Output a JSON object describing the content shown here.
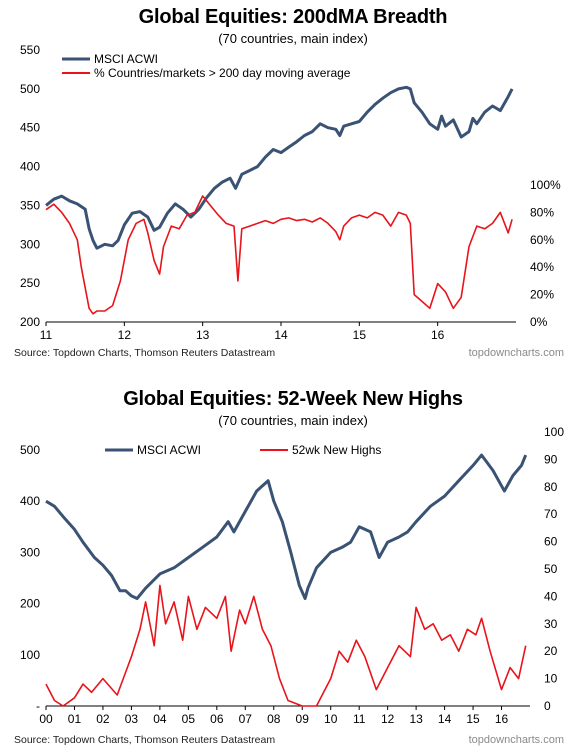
{
  "chart_data": [
    {
      "type": "line",
      "title": "Global Equities: 200dMA Breadth",
      "subtitle": "(70 countries, main index)",
      "source": "Source: Topdown Charts, Thomson Reuters Datastream",
      "site": "topdowncharts.com",
      "x_ticks": [
        "11",
        "12",
        "13",
        "14",
        "15",
        "16"
      ],
      "xlim": [
        2011,
        2017
      ],
      "left_axis": {
        "ticks": [
          "550",
          "500",
          "450",
          "400",
          "350",
          "300",
          "250",
          "200"
        ],
        "ylim": [
          200,
          550
        ]
      },
      "right_axis": {
        "ticks": [
          "100%",
          "80%",
          "60%",
          "40%",
          "20%",
          "0%"
        ],
        "ylim": [
          0,
          100
        ]
      },
      "legend_position": "top-left",
      "series": [
        {
          "name": "MSCI ACWI",
          "axis": "left",
          "color": "#3a5274",
          "x": [
            2011.0,
            2011.1,
            2011.2,
            2011.3,
            2011.4,
            2011.5,
            2011.55,
            2011.6,
            2011.65,
            2011.75,
            2011.85,
            2011.92,
            2012.0,
            2012.1,
            2012.2,
            2012.3,
            2012.38,
            2012.45,
            2012.55,
            2012.65,
            2012.75,
            2012.85,
            2012.95,
            2013.05,
            2013.15,
            2013.25,
            2013.35,
            2013.42,
            2013.5,
            2013.6,
            2013.7,
            2013.8,
            2013.9,
            2014.0,
            2014.1,
            2014.2,
            2014.3,
            2014.4,
            2014.5,
            2014.6,
            2014.7,
            2014.75,
            2014.8,
            2014.9,
            2015.0,
            2015.1,
            2015.2,
            2015.3,
            2015.4,
            2015.5,
            2015.6,
            2015.65,
            2015.7,
            2015.8,
            2015.9,
            2016.0,
            2016.05,
            2016.1,
            2016.2,
            2016.3,
            2016.4,
            2016.45,
            2016.5,
            2016.6,
            2016.7,
            2016.8,
            2016.9,
            2016.95
          ],
          "values": [
            350,
            358,
            362,
            356,
            352,
            345,
            320,
            305,
            295,
            300,
            298,
            305,
            325,
            340,
            342,
            335,
            318,
            322,
            340,
            352,
            345,
            335,
            345,
            360,
            372,
            380,
            385,
            372,
            390,
            395,
            400,
            412,
            422,
            418,
            425,
            432,
            440,
            445,
            455,
            450,
            448,
            440,
            452,
            455,
            458,
            470,
            480,
            488,
            495,
            500,
            502,
            500,
            482,
            470,
            455,
            448,
            465,
            452,
            460,
            438,
            445,
            462,
            455,
            470,
            478,
            472,
            490,
            500
          ]
        },
        {
          "name": "% Countries/markets > 200 day moving average",
          "axis": "right",
          "color": "#e8141b",
          "x": [
            2011.0,
            2011.1,
            2011.2,
            2011.3,
            2011.4,
            2011.45,
            2011.5,
            2011.55,
            2011.6,
            2011.65,
            2011.75,
            2011.85,
            2011.95,
            2012.05,
            2012.15,
            2012.25,
            2012.3,
            2012.38,
            2012.45,
            2012.5,
            2012.6,
            2012.7,
            2012.8,
            2012.9,
            2013.0,
            2013.1,
            2013.2,
            2013.3,
            2013.4,
            2013.45,
            2013.5,
            2013.6,
            2013.7,
            2013.8,
            2013.9,
            2014.0,
            2014.1,
            2014.2,
            2014.3,
            2014.4,
            2014.5,
            2014.6,
            2014.7,
            2014.75,
            2014.8,
            2014.9,
            2015.0,
            2015.1,
            2015.2,
            2015.3,
            2015.4,
            2015.5,
            2015.6,
            2015.65,
            2015.7,
            2015.8,
            2015.9,
            2016.0,
            2016.1,
            2016.2,
            2016.3,
            2016.4,
            2016.5,
            2016.6,
            2016.7,
            2016.8,
            2016.9,
            2016.95
          ],
          "values": [
            82,
            86,
            80,
            72,
            60,
            40,
            25,
            10,
            6,
            8,
            8,
            12,
            30,
            60,
            72,
            75,
            65,
            45,
            35,
            55,
            70,
            68,
            78,
            80,
            92,
            85,
            78,
            72,
            70,
            30,
            68,
            70,
            72,
            74,
            72,
            75,
            76,
            74,
            75,
            73,
            76,
            72,
            66,
            60,
            70,
            76,
            78,
            76,
            80,
            78,
            70,
            80,
            78,
            72,
            20,
            15,
            10,
            28,
            22,
            10,
            18,
            55,
            70,
            68,
            72,
            80,
            65,
            75
          ]
        }
      ]
    },
    {
      "type": "line",
      "title": "Global Equities: 52-Week New Highs",
      "subtitle": "(70 countries, main index)",
      "source": "Source: Topdown Charts, Thomson Reuters Datastream",
      "site": "topdowncharts.com",
      "x_ticks": [
        "00",
        "01",
        "02",
        "03",
        "04",
        "05",
        "06",
        "07",
        "08",
        "09",
        "10",
        "11",
        "12",
        "13",
        "14",
        "15",
        "16"
      ],
      "xlim": [
        2000,
        2017
      ],
      "left_axis": {
        "ticks": [
          "500",
          "400",
          "300",
          "200",
          "100",
          "-"
        ],
        "ylim": [
          0,
          500
        ]
      },
      "right_axis": {
        "ticks": [
          "100",
          "90",
          "80",
          "70",
          "60",
          "50",
          "40",
          "30",
          "20",
          "10",
          "0"
        ],
        "ylim": [
          0,
          100
        ]
      },
      "legend_position": "top-center",
      "series": [
        {
          "name": "MSCI ACWI",
          "axis": "left",
          "color": "#3a5274",
          "x": [
            2000.0,
            2000.3,
            2000.6,
            2001.0,
            2001.3,
            2001.7,
            2002.0,
            2002.3,
            2002.6,
            2002.8,
            2003.0,
            2003.2,
            2003.5,
            2004.0,
            2004.5,
            2005.0,
            2005.5,
            2006.0,
            2006.4,
            2006.6,
            2007.0,
            2007.4,
            2007.8,
            2008.0,
            2008.3,
            2008.6,
            2008.9,
            2009.1,
            2009.2,
            2009.5,
            2010.0,
            2010.4,
            2010.7,
            2011.0,
            2011.4,
            2011.7,
            2012.0,
            2012.4,
            2012.7,
            2013.0,
            2013.5,
            2014.0,
            2014.5,
            2015.0,
            2015.3,
            2015.7,
            2016.0,
            2016.1,
            2016.4,
            2016.7,
            2016.85
          ],
          "values": [
            400,
            390,
            370,
            345,
            320,
            290,
            275,
            255,
            225,
            225,
            215,
            210,
            230,
            258,
            270,
            290,
            310,
            330,
            360,
            340,
            380,
            420,
            440,
            400,
            360,
            300,
            235,
            210,
            230,
            270,
            300,
            310,
            320,
            350,
            340,
            290,
            320,
            330,
            340,
            360,
            390,
            410,
            440,
            470,
            490,
            460,
            430,
            420,
            450,
            470,
            490
          ]
        },
        {
          "name": "52wk New Highs",
          "axis": "right",
          "color": "#e8141b",
          "x": [
            2000.0,
            2000.3,
            2000.6,
            2001.0,
            2001.3,
            2001.6,
            2002.0,
            2002.5,
            2003.0,
            2003.3,
            2003.5,
            2003.8,
            2004.0,
            2004.2,
            2004.5,
            2004.8,
            2005.0,
            2005.3,
            2005.6,
            2006.0,
            2006.3,
            2006.5,
            2006.8,
            2007.0,
            2007.3,
            2007.6,
            2007.9,
            2008.2,
            2008.5,
            2009.0,
            2009.5,
            2010.0,
            2010.3,
            2010.6,
            2010.9,
            2011.2,
            2011.6,
            2012.0,
            2012.4,
            2012.8,
            2013.0,
            2013.3,
            2013.6,
            2013.9,
            2014.2,
            2014.5,
            2014.8,
            2015.1,
            2015.3,
            2015.6,
            2016.0,
            2016.3,
            2016.6,
            2016.85
          ],
          "values": [
            8,
            2,
            0,
            3,
            8,
            5,
            10,
            4,
            18,
            28,
            38,
            22,
            44,
            30,
            38,
            24,
            40,
            28,
            36,
            32,
            40,
            20,
            35,
            30,
            40,
            28,
            22,
            10,
            2,
            0,
            0,
            10,
            20,
            16,
            24,
            18,
            6,
            14,
            22,
            18,
            36,
            28,
            30,
            24,
            26,
            20,
            28,
            26,
            32,
            20,
            6,
            14,
            10,
            22
          ]
        }
      ]
    }
  ]
}
